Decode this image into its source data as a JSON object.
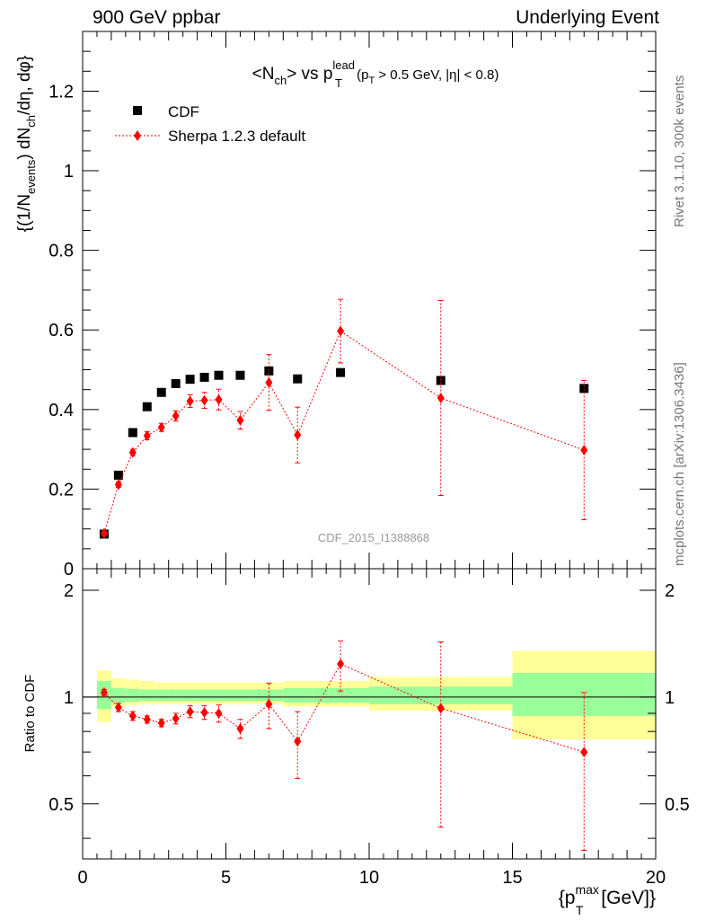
{
  "header": {
    "left": "900 GeV ppbar",
    "right": "Underlying Event"
  },
  "side_labels": {
    "rivet": "Rivet 3.1.10,  300k events",
    "mcplots": "mcplots.cern.ch [arXiv:1306.3436]"
  },
  "chart_data": [
    {
      "type": "scatter",
      "title": "<N_ch> vs p_T^lead (p_T > 0.5 GeV, |η| < 0.8)",
      "ylabel": "{(1/N_events) dN_ch/dη, dφ}",
      "watermark": "CDF_2015_I1388868",
      "xlim": [
        0,
        20
      ],
      "ylim": [
        0,
        1.35
      ],
      "yticks": [
        0,
        0.2,
        0.4,
        0.6,
        0.8,
        1,
        1.2
      ],
      "legend": {
        "placement": "top-left"
      },
      "series": [
        {
          "name": "CDF",
          "color": "#000000",
          "marker": "square",
          "x": [
            0.75,
            1.25,
            1.75,
            2.25,
            2.75,
            3.25,
            3.75,
            4.25,
            4.75,
            5.5,
            6.5,
            7.5,
            9.0,
            12.5,
            17.5
          ],
          "y": [
            0.087,
            0.235,
            0.342,
            0.407,
            0.443,
            0.465,
            0.476,
            0.481,
            0.486,
            0.486,
            0.497,
            0.477,
            0.493,
            0.473,
            0.453
          ]
        },
        {
          "name": "Sherpa 1.2.3 default",
          "color": "#ff0000",
          "marker": "diamond",
          "line": "dotted",
          "x": [
            0.75,
            1.25,
            1.75,
            2.25,
            2.75,
            3.25,
            3.75,
            4.25,
            4.75,
            5.5,
            6.5,
            7.5,
            9.0,
            12.5,
            17.5
          ],
          "y": [
            0.089,
            0.211,
            0.292,
            0.334,
            0.355,
            0.384,
            0.421,
            0.423,
            0.425,
            0.373,
            0.468,
            0.336,
            0.597,
            0.429,
            0.298
          ],
          "yerr": [
            0.005,
            0.007,
            0.008,
            0.01,
            0.01,
            0.013,
            0.016,
            0.02,
            0.026,
            0.022,
            0.07,
            0.07,
            0.08,
            0.245,
            0.175
          ]
        }
      ]
    },
    {
      "type": "scatter",
      "xlabel": "{p_T^max [GeV]}",
      "ylabel": "Ratio to CDF",
      "xlim": [
        0,
        20
      ],
      "ylim": [
        0.35,
        2.3
      ],
      "log_y": true,
      "xticks": [
        0,
        5,
        10,
        15,
        20
      ],
      "yticks": [
        0.5,
        1,
        2
      ],
      "reference_line": 1,
      "bands": {
        "x_edges": [
          0.5,
          1.0,
          1.5,
          2.0,
          2.5,
          3.0,
          3.5,
          4.0,
          4.5,
          5.0,
          6.0,
          7.0,
          8.0,
          10.0,
          15.0,
          20.0
        ],
        "outer_low": [
          0.85,
          0.94,
          0.95,
          0.955,
          0.955,
          0.955,
          0.955,
          0.955,
          0.955,
          0.955,
          0.955,
          0.94,
          0.94,
          0.915,
          0.76
        ],
        "outer_high": [
          1.19,
          1.13,
          1.12,
          1.11,
          1.1,
          1.1,
          1.1,
          1.1,
          1.1,
          1.1,
          1.1,
          1.11,
          1.11,
          1.14,
          1.35
        ],
        "inner_low": [
          0.925,
          0.965,
          0.97,
          0.975,
          0.975,
          0.975,
          0.975,
          0.975,
          0.975,
          0.975,
          0.975,
          0.965,
          0.965,
          0.955,
          0.885
        ],
        "inner_high": [
          1.11,
          1.06,
          1.055,
          1.05,
          1.05,
          1.05,
          1.05,
          1.05,
          1.05,
          1.05,
          1.05,
          1.06,
          1.06,
          1.07,
          1.17
        ]
      },
      "series": [
        {
          "name": "Sherpa 1.2.3 default",
          "color": "#ff0000",
          "marker": "diamond",
          "line": "dotted",
          "x": [
            0.75,
            1.25,
            1.75,
            2.25,
            2.75,
            3.25,
            3.75,
            4.25,
            4.75,
            5.5,
            6.5,
            7.5,
            9.0,
            12.5,
            17.5
          ],
          "y": [
            1.03,
            0.935,
            0.885,
            0.865,
            0.845,
            0.87,
            0.91,
            0.905,
            0.9,
            0.815,
            0.955,
            0.75,
            1.24,
            0.93,
            0.7
          ],
          "yerr": [
            0.02,
            0.025,
            0.025,
            0.02,
            0.02,
            0.03,
            0.035,
            0.04,
            0.05,
            0.05,
            0.14,
            0.16,
            0.2,
            0.5,
            0.33
          ]
        }
      ]
    }
  ]
}
